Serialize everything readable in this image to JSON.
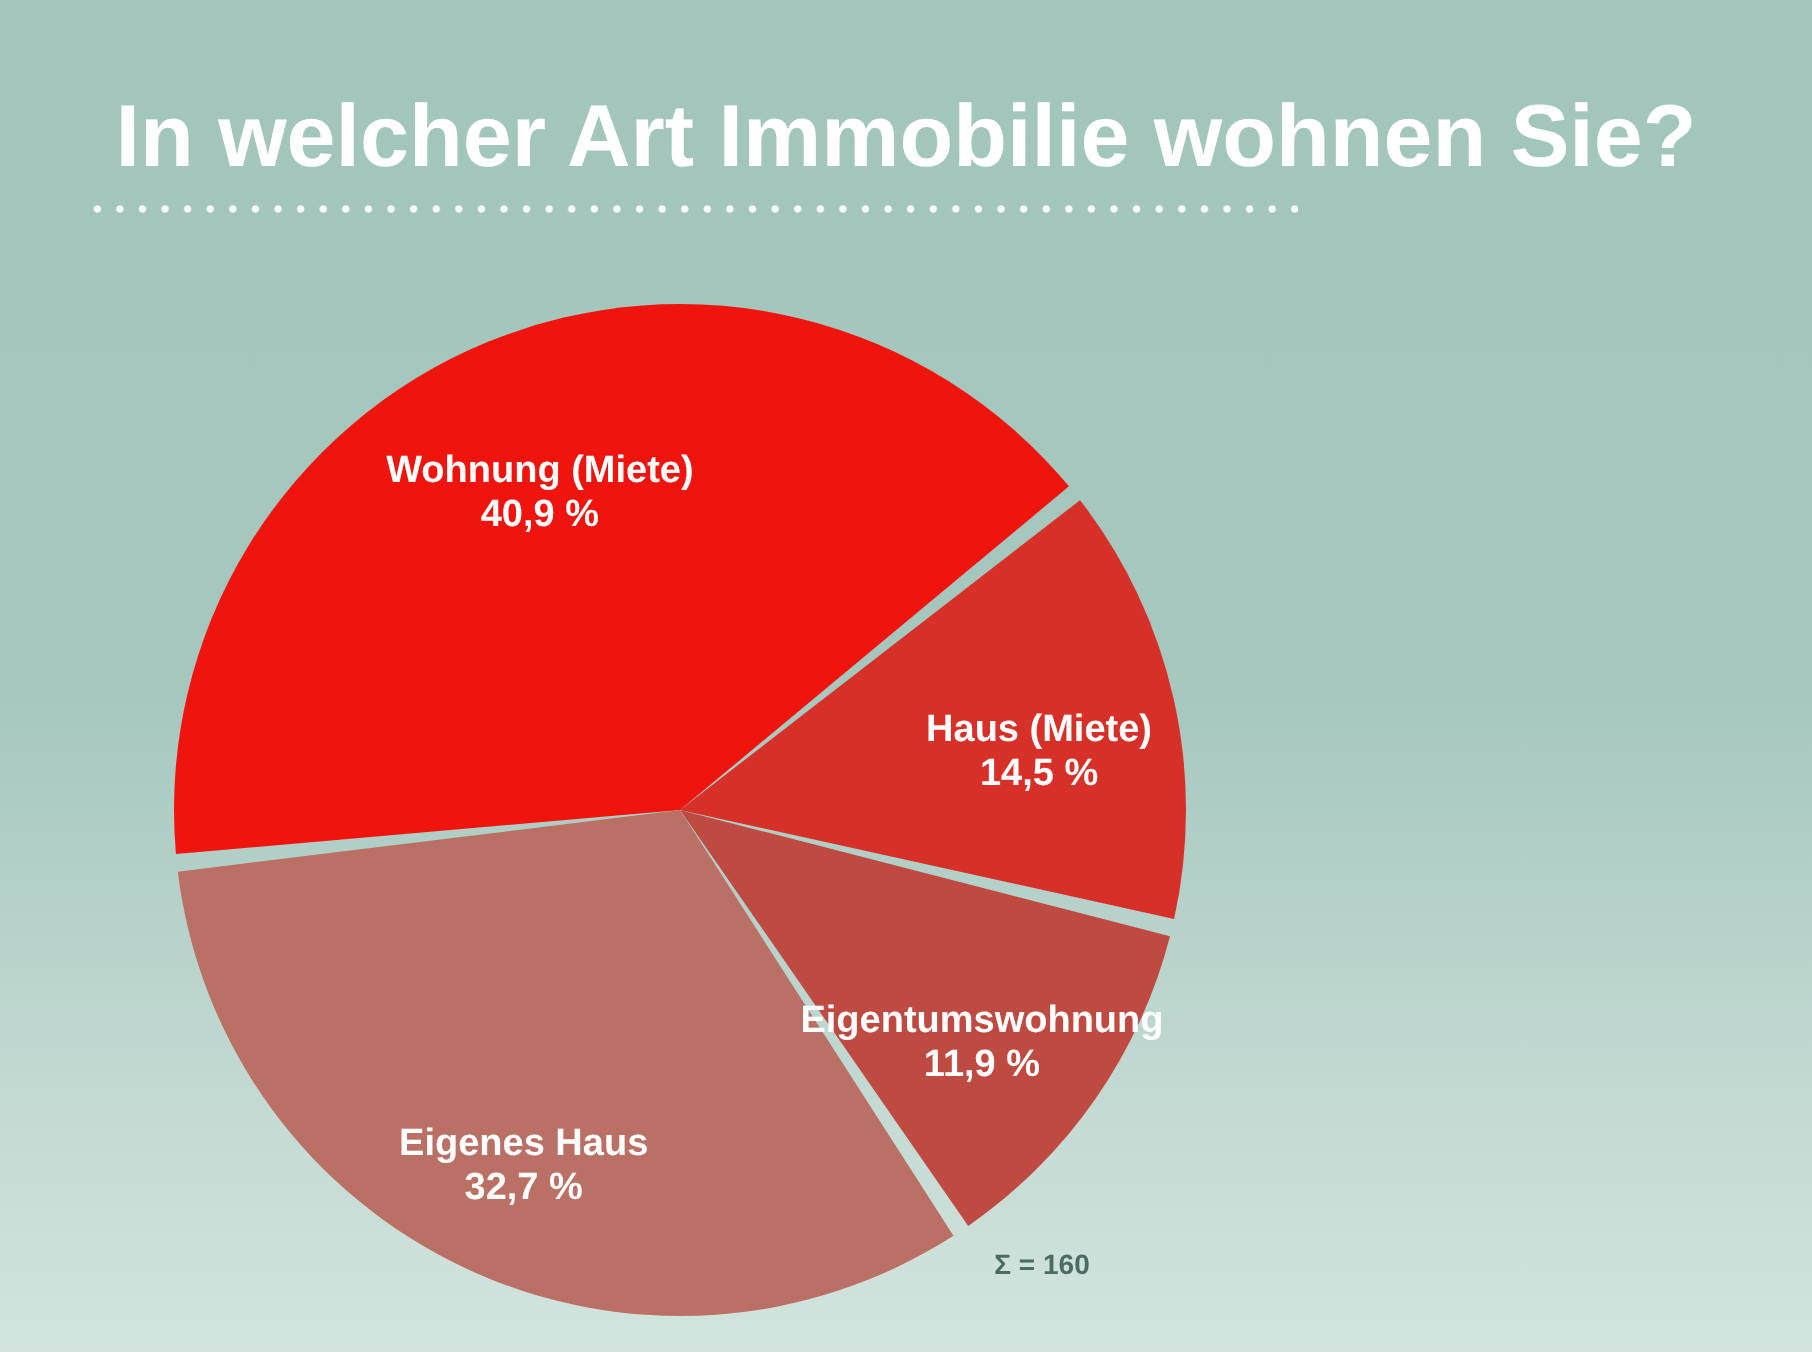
{
  "chart_data": {
    "type": "pie",
    "title": "In welcher Art Immobilie wohnen Sie?",
    "categories": [
      "Wohnung (Miete)",
      "Haus (Miete)",
      "Eigentumswohnung",
      "Eigenes Haus"
    ],
    "values": [
      40.9,
      14.5,
      11.9,
      32.7
    ],
    "colors": [
      "#f0140e",
      "#d63028",
      "#bf4a42",
      "#bb7066"
    ],
    "value_labels": [
      "40,9 %",
      "14,5 %",
      "11,9 %",
      "32,7 %"
    ],
    "annotations": [
      "Σ = 160"
    ]
  }
}
